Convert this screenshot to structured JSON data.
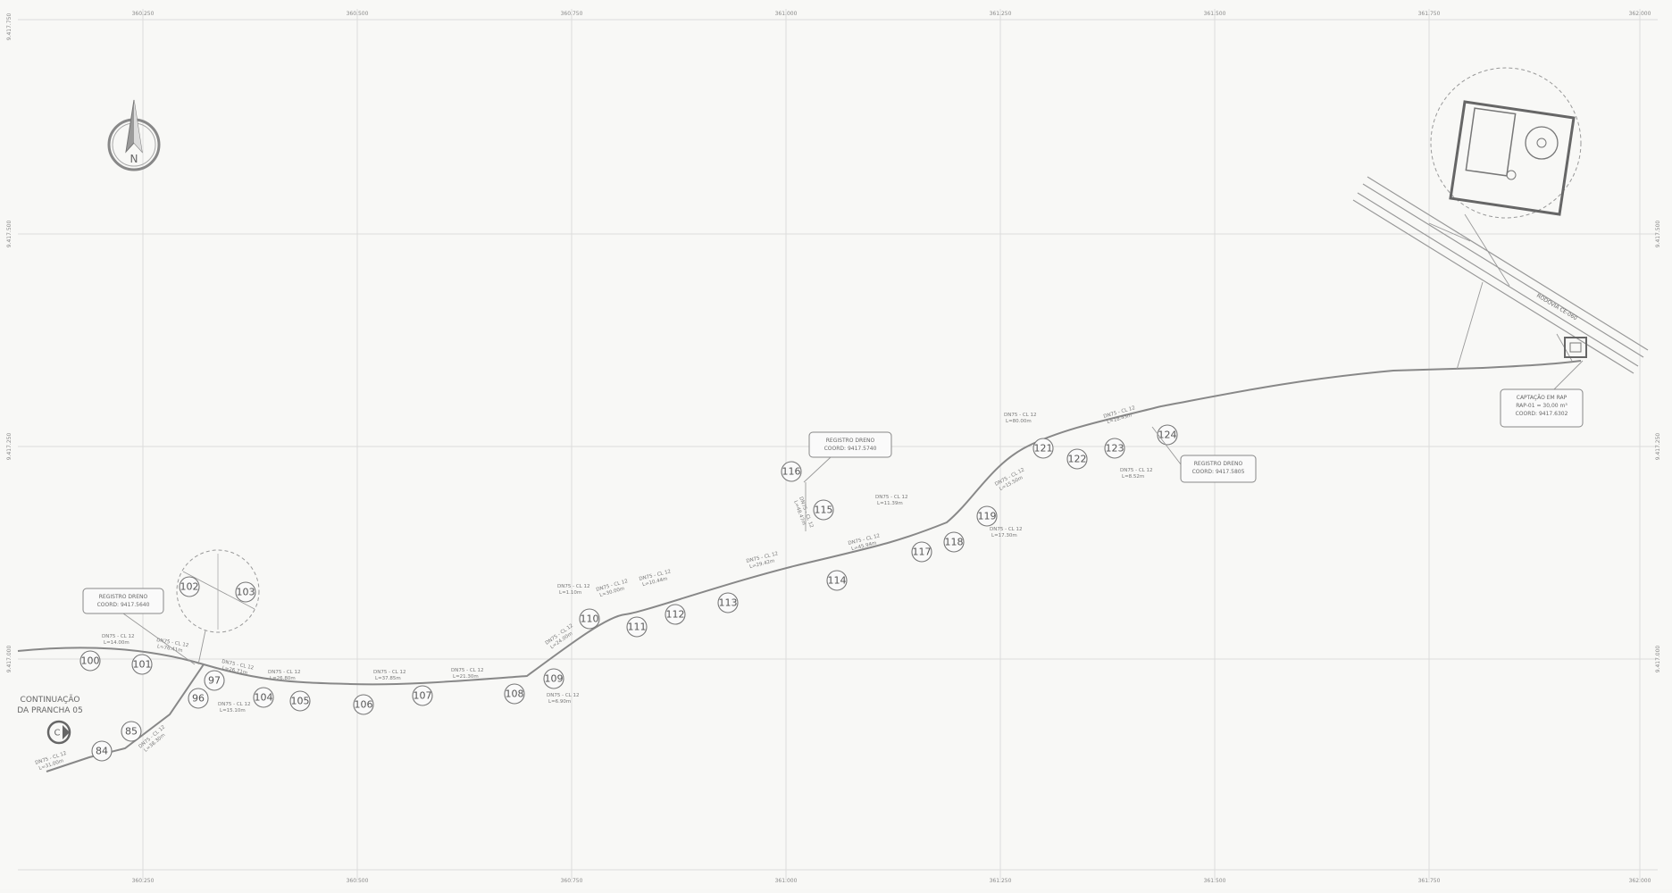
{
  "grid": {
    "top_ticks": [
      "360.250",
      "360.500",
      "360.750",
      "361.000",
      "361.250",
      "361.500",
      "361.750",
      "362.000"
    ],
    "bottom_ticks": [
      "360.250",
      "360.500",
      "360.750",
      "361.000",
      "361.250",
      "361.500",
      "361.750",
      "362.000"
    ],
    "side_ticks": [
      "9.417.750",
      "9.417.500",
      "9.417.250",
      "9.417.000"
    ]
  },
  "continuation": {
    "line1": "CONTINUAÇÃO",
    "line2": "DA PRANCHA 05",
    "letter": "C"
  },
  "north_arrow": {
    "letter": "N",
    "icon": "north-arrow-icon"
  },
  "nodes": [
    {
      "label": "84"
    },
    {
      "label": "85"
    },
    {
      "label": "96"
    },
    {
      "label": "97"
    },
    {
      "label": "100"
    },
    {
      "label": "101"
    },
    {
      "label": "102"
    },
    {
      "label": "103"
    },
    {
      "label": "104"
    },
    {
      "label": "105"
    },
    {
      "label": "106"
    },
    {
      "label": "107"
    },
    {
      "label": "108"
    },
    {
      "label": "109"
    },
    {
      "label": "110"
    },
    {
      "label": "111"
    },
    {
      "label": "112"
    },
    {
      "label": "113"
    },
    {
      "label": "114"
    },
    {
      "label": "115"
    },
    {
      "label": "116"
    },
    {
      "label": "117"
    },
    {
      "label": "118"
    },
    {
      "label": "119"
    },
    {
      "label": "121"
    },
    {
      "label": "122"
    },
    {
      "label": "123"
    },
    {
      "label": "124"
    }
  ],
  "segment_labels": [
    {
      "line1": "DN75 - CL 12",
      "line2": "L=31.00m"
    },
    {
      "line1": "DN75 - CL 12",
      "line2": "L=38.30m"
    },
    {
      "line1": "DN75 - CL 12",
      "line2": "L=14.00m"
    },
    {
      "line1": "DN75 - CL 12",
      "line2": "L=76.41m"
    },
    {
      "line1": "DN75 - CL 12",
      "line2": "L=15.10m"
    },
    {
      "line1": "DN75 - CL 12",
      "line2": "L=26.71m"
    },
    {
      "line1": "DN75 - CL 12",
      "line2": "L=26.80m"
    },
    {
      "line1": "DN75 - CL 12",
      "line2": "L=37.85m"
    },
    {
      "line1": "DN75 - CL 12",
      "line2": "L=21.30m"
    },
    {
      "line1": "DN75 - CL 12",
      "line2": "L=6.90m"
    },
    {
      "line1": "DN75 - CL 12",
      "line2": "L=24.00m"
    },
    {
      "line1": "DN75 - CL 12",
      "line2": "L=1.10m"
    },
    {
      "line1": "DN75 - CL 12",
      "line2": "L=30.00m"
    },
    {
      "line1": "DN75 - CL 12",
      "line2": "L=10.44m"
    },
    {
      "line1": "DN75 - CL 12",
      "line2": "L=29.42m"
    },
    {
      "line1": "DN75 - CL 12",
      "line2": "L=48.47m"
    },
    {
      "line1": "DN75 - CL 12",
      "line2": "L=45.94m"
    },
    {
      "line1": "DN75 - CL 12",
      "line2": "L=11.39m"
    },
    {
      "line1": "DN75 - CL 12",
      "line2": "L=17.30m"
    },
    {
      "line1": "DN75 - CL 12",
      "line2": "L=15.50m"
    },
    {
      "line1": "DN75 - CL 12",
      "line2": "L=80.00m"
    },
    {
      "line1": "DN75 - CL 12",
      "line2": "L=18.43m"
    },
    {
      "line1": "DN75 - CL 12",
      "line2": "L=8.52m"
    }
  ],
  "callouts": [
    {
      "line1": "REGISTRO DRENO",
      "line2": "COORD: 9417.5640"
    },
    {
      "line1": "REGISTRO DRENO",
      "line2": "COORD: 9417.5740"
    },
    {
      "line1": "REGISTRO DRENO",
      "line2": "COORD: 9417.5805"
    },
    {
      "line1": "CAPTAÇÃO EM RAP",
      "line2": "RAP-01 = 30,00 m³",
      "line3": "COORD: 9417.6302"
    }
  ],
  "road_label": "RODOVIA CE-060",
  "colors": {
    "paper": "#f8f8f6",
    "grid": "#dcdcdc",
    "line": "#888888",
    "text": "#666666"
  }
}
